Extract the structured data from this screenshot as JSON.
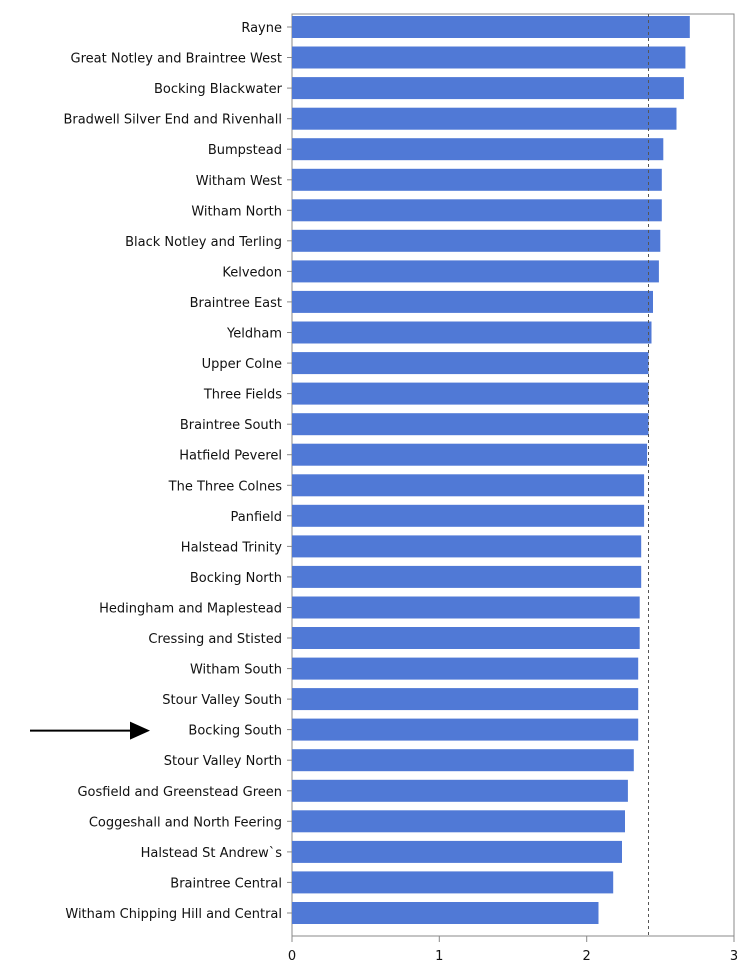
{
  "colors": {
    "bar": "#5079d6",
    "axis": "#888888",
    "reference_line": "#555555",
    "arrow": "#000000"
  },
  "chart_data": {
    "type": "bar",
    "orientation": "horizontal",
    "categories": [
      "Rayne",
      "Great Notley and Braintree West",
      "Bocking Blackwater",
      "Bradwell Silver End and Rivenhall",
      "Bumpstead",
      "Witham West",
      "Witham North",
      "Black Notley and Terling",
      "Kelvedon",
      "Braintree East",
      "Yeldham",
      "Upper Colne",
      "Three Fields",
      "Braintree South",
      "Hatfield Peverel",
      "The Three Colnes",
      "Panfield",
      "Halstead Trinity",
      "Bocking North",
      "Hedingham and Maplestead",
      "Cressing and Stisted",
      "Witham South",
      "Stour Valley South",
      "Bocking South",
      "Stour Valley North",
      "Gosfield and Greenstead Green",
      "Coggeshall and North Feering",
      "Halstead St Andrew`s",
      "Braintree Central",
      "Witham Chipping Hill and Central"
    ],
    "values": [
      2.7,
      2.67,
      2.66,
      2.61,
      2.52,
      2.51,
      2.51,
      2.5,
      2.49,
      2.45,
      2.44,
      2.42,
      2.42,
      2.42,
      2.41,
      2.39,
      2.39,
      2.37,
      2.37,
      2.36,
      2.36,
      2.35,
      2.35,
      2.35,
      2.32,
      2.28,
      2.26,
      2.24,
      2.18,
      2.08
    ],
    "xlim": [
      0,
      3
    ],
    "xticks": [
      "0",
      "1",
      "2",
      "3"
    ],
    "reference_line_x": 2.42,
    "highlighted_category": "Bocking South",
    "xlabel": "",
    "ylabel": "",
    "title": ""
  }
}
